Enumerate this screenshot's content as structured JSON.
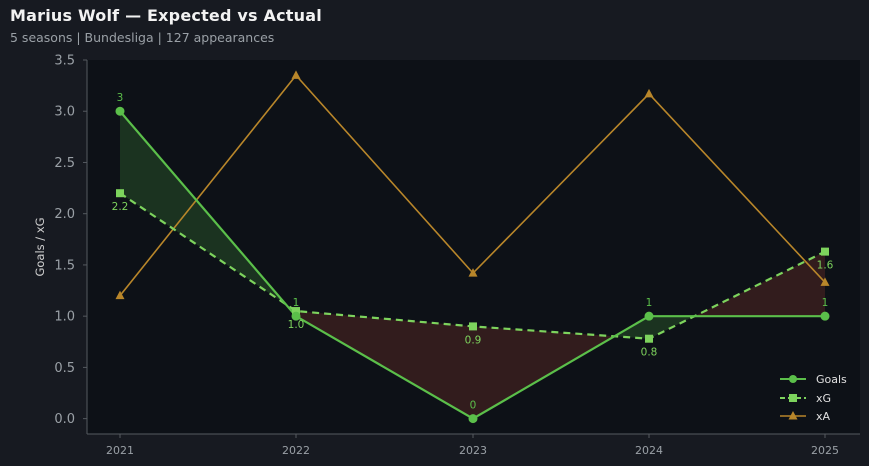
{
  "header": {
    "title": "Marius Wolf — Expected vs Actual",
    "subtitle": "5 seasons | Bundesliga | 127 appearances"
  },
  "colors": {
    "background": "#171a21",
    "plot_background": "#0d1117",
    "goals": "#5bbf4a",
    "xg": "#7dd35d",
    "xa": "#b8862a",
    "over_fill": "#1e3a22",
    "under_fill": "#3a1f1f",
    "axis": "#555a60"
  },
  "chart_data": {
    "type": "line",
    "x": [
      "2021",
      "2022",
      "2023",
      "2024",
      "2025"
    ],
    "ylabel": "Goals / xG",
    "xlabel": "",
    "ylim": [
      -0.15,
      3.5
    ],
    "yticks": [
      "0.0",
      "0.5",
      "1.0",
      "1.5",
      "2.0",
      "2.5",
      "3.0",
      "3.5"
    ],
    "grid": false,
    "legend_position": "bottom-right",
    "series": [
      {
        "name": "Goals",
        "values": [
          3,
          1,
          0,
          1,
          1
        ],
        "labels": [
          "3",
          "1",
          "0",
          "1",
          "1"
        ],
        "marker": "circle",
        "style": "solid"
      },
      {
        "name": "xG",
        "values": [
          2.2,
          1.05,
          0.9,
          0.78,
          1.63
        ],
        "labels": [
          "2.2",
          "1.0",
          "0.9",
          "0.8",
          "1.6"
        ],
        "marker": "square",
        "style": "dashed"
      },
      {
        "name": "xA",
        "values": [
          1.2,
          3.35,
          1.42,
          3.17,
          1.33
        ],
        "marker": "triangle",
        "style": "solid"
      }
    ]
  }
}
